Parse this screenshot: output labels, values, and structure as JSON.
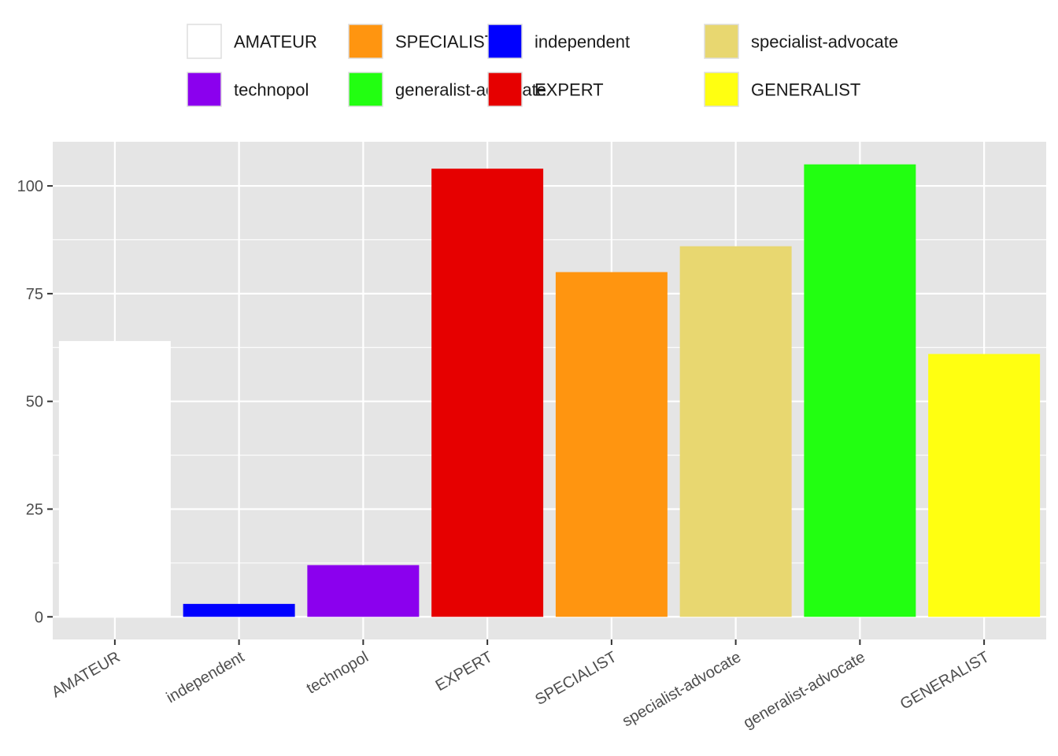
{
  "chart_data": {
    "type": "bar",
    "categories": [
      "AMATEUR",
      "independent",
      "technopol",
      "EXPERT",
      "SPECIALIST",
      "specialist-advocate",
      "generalist-advocate",
      "GENERALIST"
    ],
    "values": [
      64,
      3,
      12,
      104,
      80,
      86,
      105,
      61
    ],
    "colors": [
      "#FFFFFF",
      "#0000FF",
      "#8B00EE",
      "#E60000",
      "#FF9510",
      "#E8D770",
      "#22FF11",
      "#FFFF11"
    ],
    "title": "",
    "xlabel": "",
    "ylabel": "",
    "ylim": [
      -5.25,
      110.25
    ],
    "yticks": [
      0,
      25,
      50,
      75,
      100
    ],
    "ytick_labels": [
      "0",
      "25",
      "50",
      "75",
      "100"
    ],
    "grid": true,
    "background": "#E5E5E5",
    "legend": {
      "position": "top",
      "entries": [
        "AMATEUR",
        "technopol",
        "SPECIALIST",
        "generalist-advocate",
        "independent",
        "EXPERT",
        "specialist-advocate",
        "GENERALIST"
      ]
    }
  }
}
